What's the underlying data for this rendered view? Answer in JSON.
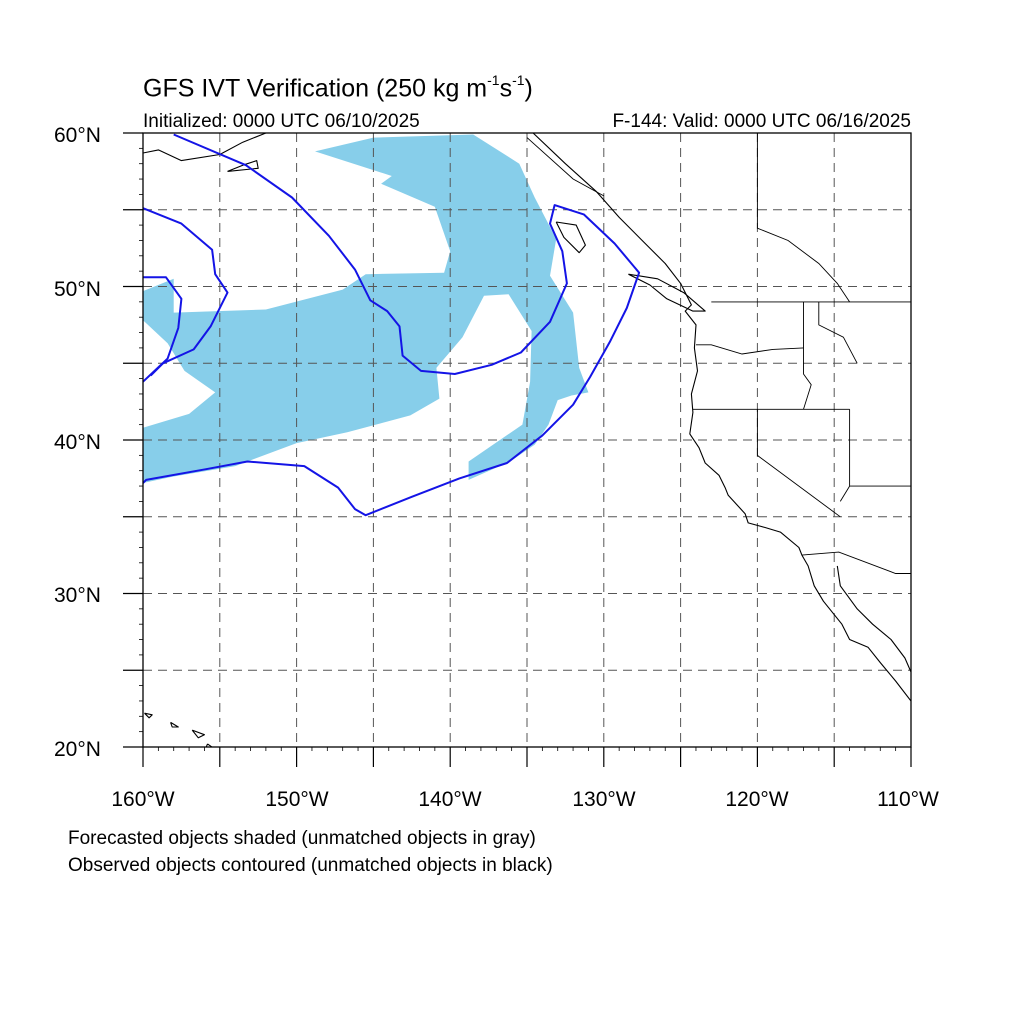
{
  "header": {
    "title_main": "GFS IVT Verification (250 kg m",
    "title_sup1": "-1",
    "title_mid": "s",
    "title_sup2": "-1",
    "title_end": ")",
    "initialized": "Initialized: 0000 UTC 06/10/2025",
    "valid": "F-144: Valid: 0000 UTC 06/16/2025"
  },
  "map": {
    "projection": "cylindrical equidistant",
    "lon_range": [
      -160,
      -110
    ],
    "lat_range": [
      20,
      60
    ],
    "lat_labels": [
      {
        "value": 60,
        "text": "60°N"
      },
      {
        "value": 50,
        "text": "50°N"
      },
      {
        "value": 40,
        "text": "40°N"
      },
      {
        "value": 30,
        "text": "30°N"
      },
      {
        "value": 20,
        "text": "20°N"
      }
    ],
    "lon_labels": [
      {
        "value": -160,
        "text": "160°W"
      },
      {
        "value": -150,
        "text": "150°W"
      },
      {
        "value": -140,
        "text": "140°W"
      },
      {
        "value": -130,
        "text": "130°W"
      },
      {
        "value": -120,
        "text": "120°W"
      },
      {
        "value": -110,
        "text": "110°W"
      }
    ],
    "gridlines": "dashed, every 5°",
    "colors": {
      "forecast_fill": "#87ceea",
      "observed_contour": "#1414e6",
      "coastline": "#000000",
      "grid": "#555555"
    },
    "forecast_objects": [
      {
        "name": "forecast-ivt-object",
        "points": [
          [
            -158,
            50.5
          ],
          [
            -158,
            48.3
          ],
          [
            -152,
            48.5
          ],
          [
            -147,
            49.8
          ],
          [
            -145.5,
            50.8
          ],
          [
            -140.4,
            50.9
          ],
          [
            -140,
            52.3
          ],
          [
            -141,
            55.2
          ],
          [
            -144.5,
            56.7
          ],
          [
            -143.8,
            57.2
          ],
          [
            -148.8,
            58.8
          ],
          [
            -145,
            59.7
          ],
          [
            -138.5,
            59.9
          ],
          [
            -135.5,
            58
          ],
          [
            -134.5,
            55.8
          ],
          [
            -133.1,
            53.1
          ],
          [
            -133.5,
            50.7
          ],
          [
            -132,
            48.3
          ],
          [
            -131.6,
            44.7
          ],
          [
            -131,
            43.1
          ],
          [
            -132.1,
            42.9
          ],
          [
            -133,
            42.6
          ],
          [
            -133.6,
            41
          ],
          [
            -134.5,
            39.7
          ],
          [
            -136.1,
            38.6
          ],
          [
            -138.8,
            37.4
          ],
          [
            -138.8,
            38.6
          ],
          [
            -135.3,
            41
          ],
          [
            -134.8,
            43.8
          ],
          [
            -134.7,
            47.1
          ],
          [
            -136.2,
            49.5
          ],
          [
            -137.8,
            49.4
          ],
          [
            -139.2,
            46.7
          ],
          [
            -140.9,
            44.7
          ],
          [
            -140.7,
            42.7
          ],
          [
            -142.6,
            41.6
          ],
          [
            -146.7,
            40.5
          ],
          [
            -150,
            39.8
          ],
          [
            -154,
            38.3
          ],
          [
            -158.1,
            37.6
          ],
          [
            -160,
            37.2
          ],
          [
            -160,
            40.8
          ],
          [
            -157,
            41.7
          ],
          [
            -155.3,
            43.1
          ],
          [
            -157.3,
            44.5
          ],
          [
            -158.4,
            46.3
          ],
          [
            -160,
            47.8
          ],
          [
            -160,
            49.7
          ]
        ]
      }
    ],
    "observed_objects": [
      {
        "name": "observed-ivt-contour-main",
        "points": [
          [
            -158,
            59.9
          ],
          [
            -153.3,
            57.9
          ],
          [
            -150.3,
            55.8
          ],
          [
            -147.9,
            53.3
          ],
          [
            -146.2,
            51.1
          ],
          [
            -145.2,
            49.1
          ],
          [
            -144.1,
            48.4
          ],
          [
            -143.3,
            47.4
          ],
          [
            -143.1,
            45.5
          ],
          [
            -141.9,
            44.5
          ],
          [
            -139.7,
            44.3
          ],
          [
            -137.3,
            44.9
          ],
          [
            -135.4,
            45.7
          ],
          [
            -133.5,
            47.7
          ],
          [
            -132.4,
            50.2
          ],
          [
            -132.7,
            52.3
          ],
          [
            -133.5,
            54.1
          ],
          [
            -133.2,
            55.3
          ],
          [
            -131.3,
            54.7
          ],
          [
            -129.3,
            52.8
          ],
          [
            -127.7,
            50.9
          ],
          [
            -128.5,
            48.6
          ],
          [
            -129.6,
            46.4
          ],
          [
            -130.9,
            44.1
          ],
          [
            -132,
            42.3
          ],
          [
            -134,
            40.3
          ],
          [
            -136.3,
            38.5
          ],
          [
            -139.4,
            37.5
          ],
          [
            -142.5,
            36.3
          ],
          [
            -145.5,
            35.1
          ],
          [
            -146.2,
            35.5
          ],
          [
            -147.3,
            36.9
          ],
          [
            -149.5,
            38.3
          ],
          [
            -153.2,
            38.6
          ],
          [
            -155.9,
            38.1
          ],
          [
            -159.8,
            37.4
          ],
          [
            -160,
            37.2
          ]
        ]
      },
      {
        "name": "observed-ivt-contour-west",
        "points": [
          [
            -160,
            55.1
          ],
          [
            -157.5,
            54.1
          ],
          [
            -155.5,
            52.4
          ],
          [
            -155.3,
            50.8
          ],
          [
            -154.5,
            49.6
          ],
          [
            -155.6,
            47.4
          ],
          [
            -156.7,
            45.9
          ],
          [
            -158.7,
            45
          ],
          [
            -159.5,
            44.2
          ]
        ]
      },
      {
        "name": "observed-ivt-contour-western-edge",
        "points": [
          [
            -160,
            50.6
          ],
          [
            -158.5,
            50.6
          ],
          [
            -157.5,
            49.2
          ],
          [
            -157.7,
            47.3
          ],
          [
            -158.4,
            45.3
          ],
          [
            -160,
            43.8
          ]
        ]
      }
    ],
    "coastlines": [
      {
        "name": "north-america-coastline",
        "points": [
          [
            -134.6,
            60
          ],
          [
            -132.5,
            58
          ],
          [
            -130.5,
            56.2
          ],
          [
            -129,
            54.5
          ],
          [
            -127.5,
            53
          ],
          [
            -126,
            51.5
          ],
          [
            -125,
            50.2
          ],
          [
            -124.3,
            48.8
          ],
          [
            -124.7,
            48.4
          ],
          [
            -124,
            47.5
          ],
          [
            -124.1,
            46
          ],
          [
            -123.9,
            44.5
          ],
          [
            -124.3,
            43
          ],
          [
            -124.2,
            41.8
          ],
          [
            -124.4,
            40.4
          ],
          [
            -123.8,
            39.5
          ],
          [
            -123.4,
            38.5
          ],
          [
            -122.5,
            37.7
          ],
          [
            -122.1,
            36.9
          ],
          [
            -121.9,
            36.4
          ],
          [
            -120.8,
            35.2
          ],
          [
            -120.6,
            34.6
          ],
          [
            -119.5,
            34.3
          ],
          [
            -118.5,
            34
          ],
          [
            -117.3,
            33
          ],
          [
            -117.1,
            32.5
          ],
          [
            -116.7,
            31.8
          ],
          [
            -116.3,
            30.5
          ],
          [
            -115.7,
            29.5
          ],
          [
            -114.5,
            28
          ],
          [
            -114,
            27
          ],
          [
            -112.8,
            26.5
          ],
          [
            -112,
            25.5
          ],
          [
            -111,
            24.3
          ],
          [
            -110,
            23
          ]
        ]
      },
      {
        "name": "vancouver-island-coast",
        "points": [
          [
            -128.4,
            50.8
          ],
          [
            -127,
            50.1
          ],
          [
            -125.9,
            49.2
          ],
          [
            -124.2,
            48.4
          ],
          [
            -123.4,
            48.4
          ],
          [
            -124.8,
            49.6
          ],
          [
            -126.5,
            50.5
          ],
          [
            -128.4,
            50.8
          ]
        ]
      },
      {
        "name": "haida-gwaii-coast",
        "points": [
          [
            -133.1,
            54.2
          ],
          [
            -131.8,
            54
          ],
          [
            -131.2,
            52.7
          ],
          [
            -131.6,
            52.2
          ],
          [
            -132.6,
            53.2
          ],
          [
            -133.1,
            54.2
          ]
        ]
      },
      {
        "name": "alaska-peninsula-coastline",
        "points": [
          [
            -160,
            58.7
          ],
          [
            -159,
            58.9
          ],
          [
            -157.5,
            58.2
          ],
          [
            -155,
            58.6
          ],
          [
            -153.5,
            59.4
          ],
          [
            -152,
            60
          ]
        ]
      },
      {
        "name": "kodiak-island-coast",
        "points": [
          [
            -154.5,
            57.5
          ],
          [
            -152.5,
            57.7
          ],
          [
            -152.6,
            58.2
          ],
          [
            -153.5,
            57.9
          ],
          [
            -154.5,
            57.5
          ]
        ]
      },
      {
        "name": "gulf-of-california-coast",
        "points": [
          [
            -114.8,
            31.8
          ],
          [
            -114.6,
            30.5
          ],
          [
            -113.5,
            29
          ],
          [
            -112.5,
            28
          ],
          [
            -111.3,
            27
          ],
          [
            -110.4,
            25.8
          ],
          [
            -109.7,
            24.2
          ],
          [
            -110,
            23
          ]
        ]
      },
      {
        "name": "hawaii-islands",
        "points": [
          [
            -159.9,
            22.2
          ],
          [
            -159.4,
            22.1
          ],
          [
            -159.6,
            21.9
          ],
          [
            -159.9,
            22.2
          ]
        ]
      },
      {
        "name": "hawaii-islands-2",
        "points": [
          [
            -158.2,
            21.6
          ],
          [
            -157.7,
            21.3
          ],
          [
            -158.1,
            21.3
          ],
          [
            -158.2,
            21.6
          ]
        ]
      },
      {
        "name": "hawaii-islands-3",
        "points": [
          [
            -156.8,
            21.1
          ],
          [
            -156,
            20.8
          ],
          [
            -156.4,
            20.6
          ],
          [
            -156.8,
            21.1
          ]
        ]
      },
      {
        "name": "hawaii-islands-4",
        "points": [
          [
            -155.8,
            20.2
          ],
          [
            -154.8,
            19.5
          ],
          [
            -155.6,
            19.1
          ],
          [
            -156,
            19.7
          ],
          [
            -155.8,
            20.2
          ]
        ]
      }
    ],
    "borders": [
      {
        "name": "us-canada-border",
        "points": [
          [
            -123,
            49
          ],
          [
            -110,
            49
          ]
        ]
      },
      {
        "name": "wa-or-border",
        "points": [
          [
            -124,
            46.2
          ],
          [
            -123,
            46.2
          ],
          [
            -121,
            45.6
          ],
          [
            -119,
            45.9
          ],
          [
            -117,
            46
          ]
        ]
      },
      {
        "name": "or-ca-nv-border",
        "points": [
          [
            -124.2,
            42
          ],
          [
            -114,
            42
          ]
        ]
      },
      {
        "name": "id-border",
        "points": [
          [
            -117,
            49
          ],
          [
            -117,
            44.3
          ],
          [
            -116.5,
            43.6
          ],
          [
            -117,
            42
          ]
        ]
      },
      {
        "name": "ca-nv-border",
        "points": [
          [
            -120,
            42
          ],
          [
            -120,
            39
          ],
          [
            -114.6,
            35
          ]
        ]
      },
      {
        "name": "nv-ut-border",
        "points": [
          [
            -114,
            42
          ],
          [
            -114,
            37
          ],
          [
            -114.6,
            36
          ]
        ]
      },
      {
        "name": "az-border",
        "points": [
          [
            -114,
            37
          ],
          [
            -110,
            37
          ]
        ]
      },
      {
        "name": "us-mexico-border",
        "points": [
          [
            -117.1,
            32.5
          ],
          [
            -114.7,
            32.7
          ],
          [
            -111,
            31.3
          ],
          [
            -110,
            31.3
          ]
        ]
      },
      {
        "name": "mt-id-border",
        "points": [
          [
            -116,
            49
          ],
          [
            -116,
            47.5
          ],
          [
            -114.4,
            46.7
          ],
          [
            -113.5,
            45
          ]
        ]
      },
      {
        "name": "canada-province-border",
        "points": [
          [
            -120,
            60
          ],
          [
            -120,
            53.8
          ],
          [
            -118,
            53
          ],
          [
            -116,
            51.5
          ],
          [
            -114.8,
            50.2
          ],
          [
            -114,
            49
          ]
        ]
      },
      {
        "name": "bc-alaska-border",
        "points": [
          [
            -135,
            59.7
          ],
          [
            -132,
            57
          ],
          [
            -130,
            55.9
          ]
        ]
      }
    ]
  },
  "footer": {
    "line1": "Forecasted objects shaded (unmatched objects in gray)",
    "line2": "Observed objects contoured (unmatched objects in black)"
  }
}
